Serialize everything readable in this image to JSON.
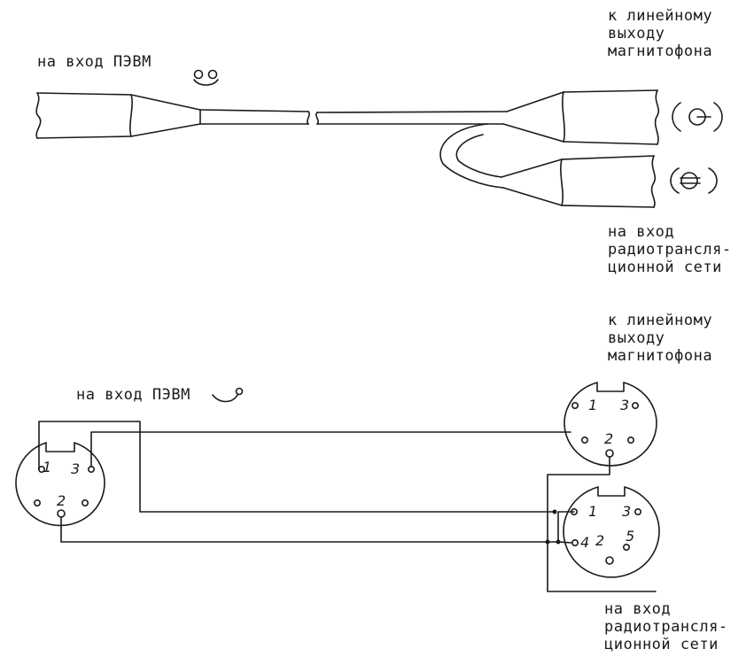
{
  "top": {
    "label_pc_input": "на вход ПЭВМ",
    "label_line_out": "к линейному\nвыходу\nмагнитофона",
    "label_radio_in": "на вход\nрадиотрансля-\nционной сети"
  },
  "bottom": {
    "label_pc_input": "на вход ПЭВМ",
    "label_line_out": "к линейному\nвыходу\nмагнитофона",
    "label_radio_in": "на вход\nрадиотрансля-\nционной сети",
    "left_connector": {
      "pins": [
        "1",
        "3",
        "2"
      ]
    },
    "right_top_connector": {
      "pins": [
        "1",
        "3",
        "2"
      ]
    },
    "right_bottom_connector": {
      "pins": [
        "1",
        "3",
        "4",
        "2",
        "5"
      ]
    }
  },
  "colors": {
    "ink": "#1a1a1a",
    "background": "#ffffff"
  }
}
